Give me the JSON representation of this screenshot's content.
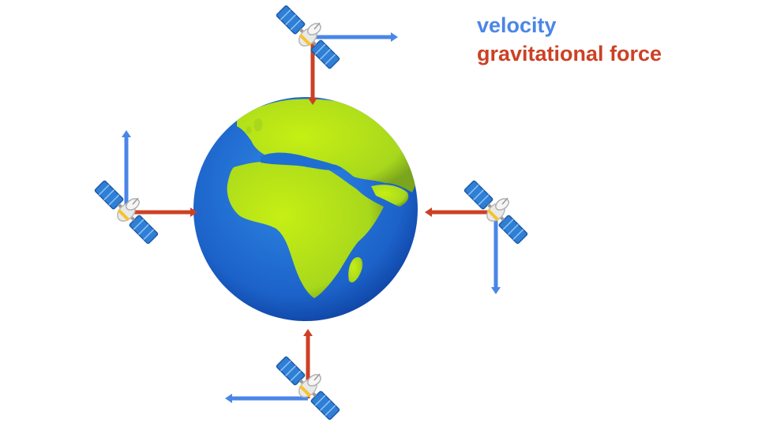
{
  "legend": {
    "velocity": {
      "label": "velocity",
      "color": "#4a86e8"
    },
    "gravity": {
      "label": "gravitational force",
      "color": "#cc4125"
    }
  },
  "colors": {
    "ocean": "#1e6fd1",
    "ocean_dark": "#0d3f9e",
    "land": "#b6e41a",
    "land_dark": "#7aa51c",
    "satellite_panel": "#2f7fd6",
    "satellite_body": "#e6e6e6",
    "satellite_band": "#f4c430"
  },
  "icons": {
    "planet": "earth-africa-globe-icon",
    "satellite": "satellite-icon"
  },
  "satellites": [
    {
      "position": "top",
      "velocity_direction": "right",
      "force_direction": "down"
    },
    {
      "position": "left",
      "velocity_direction": "up",
      "force_direction": "right"
    },
    {
      "position": "right",
      "velocity_direction": "down",
      "force_direction": "left"
    },
    {
      "position": "bottom",
      "velocity_direction": "left",
      "force_direction": "up"
    }
  ]
}
